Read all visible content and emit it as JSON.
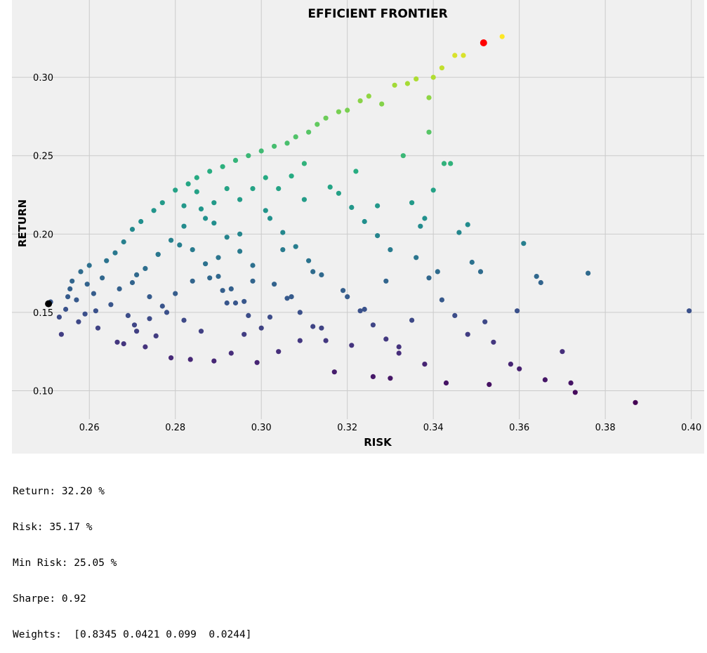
{
  "chart_data": {
    "type": "scatter",
    "title": "EFFICIENT FRONTIER",
    "xlabel": "RISK",
    "ylabel": "RETURN",
    "xlim": [
      0.242,
      0.403
    ],
    "ylim": [
      0.085,
      0.335
    ],
    "xticks": [
      {
        "value": 0.26,
        "label": "0.26"
      },
      {
        "value": 0.28,
        "label": "0.28"
      },
      {
        "value": 0.3,
        "label": "0.30"
      },
      {
        "value": 0.32,
        "label": "0.32"
      },
      {
        "value": 0.34,
        "label": "0.34"
      },
      {
        "value": 0.36,
        "label": "0.36"
      },
      {
        "value": 0.38,
        "label": "0.38"
      },
      {
        "value": 0.4,
        "label": "0.40"
      }
    ],
    "yticks": [
      {
        "value": 0.1,
        "label": "0.10"
      },
      {
        "value": 0.15,
        "label": "0.15"
      },
      {
        "value": 0.2,
        "label": "0.20"
      },
      {
        "value": 0.25,
        "label": "0.25"
      },
      {
        "value": 0.3,
        "label": "0.30"
      }
    ],
    "grid": true,
    "background": "#f0f0f0",
    "grid_color": "#cbcbcb",
    "colormap": "viridis",
    "color_by": "return",
    "series": [
      {
        "marker_color": "viridis",
        "points": [
          [
            0.251,
            0.1567
          ],
          [
            0.253,
            0.147
          ],
          [
            0.2535,
            0.136
          ],
          [
            0.2545,
            0.152
          ],
          [
            0.255,
            0.16
          ],
          [
            0.2555,
            0.165
          ],
          [
            0.256,
            0.17
          ],
          [
            0.257,
            0.158
          ],
          [
            0.2575,
            0.144
          ],
          [
            0.258,
            0.176
          ],
          [
            0.259,
            0.149
          ],
          [
            0.2595,
            0.168
          ],
          [
            0.26,
            0.18
          ],
          [
            0.261,
            0.162
          ],
          [
            0.2615,
            0.151
          ],
          [
            0.262,
            0.14
          ],
          [
            0.263,
            0.172
          ],
          [
            0.264,
            0.183
          ],
          [
            0.265,
            0.155
          ],
          [
            0.266,
            0.188
          ],
          [
            0.2665,
            0.131
          ],
          [
            0.267,
            0.165
          ],
          [
            0.268,
            0.195
          ],
          [
            0.269,
            0.148
          ],
          [
            0.27,
            0.203
          ],
          [
            0.2705,
            0.142
          ],
          [
            0.271,
            0.174
          ],
          [
            0.272,
            0.208
          ],
          [
            0.273,
            0.128
          ],
          [
            0.274,
            0.16
          ],
          [
            0.275,
            0.215
          ],
          [
            0.2755,
            0.135
          ],
          [
            0.276,
            0.187
          ],
          [
            0.277,
            0.22
          ],
          [
            0.278,
            0.15
          ],
          [
            0.279,
            0.121
          ],
          [
            0.28,
            0.228
          ],
          [
            0.281,
            0.193
          ],
          [
            0.282,
            0.145
          ],
          [
            0.283,
            0.232
          ],
          [
            0.2835,
            0.12
          ],
          [
            0.284,
            0.17
          ],
          [
            0.285,
            0.236
          ],
          [
            0.286,
            0.138
          ],
          [
            0.287,
            0.21
          ],
          [
            0.288,
            0.24
          ],
          [
            0.289,
            0.119
          ],
          [
            0.29,
            0.185
          ],
          [
            0.291,
            0.243
          ],
          [
            0.292,
            0.156
          ],
          [
            0.293,
            0.124
          ],
          [
            0.294,
            0.247
          ],
          [
            0.295,
            0.2
          ],
          [
            0.296,
            0.136
          ],
          [
            0.297,
            0.25
          ],
          [
            0.298,
            0.17
          ],
          [
            0.299,
            0.118
          ],
          [
            0.3,
            0.253
          ],
          [
            0.301,
            0.215
          ],
          [
            0.302,
            0.147
          ],
          [
            0.303,
            0.256
          ],
          [
            0.304,
            0.125
          ],
          [
            0.305,
            0.19
          ],
          [
            0.306,
            0.258
          ],
          [
            0.307,
            0.16
          ],
          [
            0.308,
            0.262
          ],
          [
            0.309,
            0.132
          ],
          [
            0.31,
            0.222
          ],
          [
            0.311,
            0.265
          ],
          [
            0.312,
            0.176
          ],
          [
            0.313,
            0.27
          ],
          [
            0.314,
            0.14
          ],
          [
            0.315,
            0.274
          ],
          [
            0.316,
            0.23
          ],
          [
            0.317,
            0.112
          ],
          [
            0.318,
            0.278
          ],
          [
            0.319,
            0.164
          ],
          [
            0.32,
            0.279
          ],
          [
            0.321,
            0.129
          ],
          [
            0.322,
            0.24
          ],
          [
            0.323,
            0.285
          ],
          [
            0.324,
            0.152
          ],
          [
            0.325,
            0.288
          ],
          [
            0.326,
            0.109
          ],
          [
            0.327,
            0.218
          ],
          [
            0.328,
            0.283
          ],
          [
            0.329,
            0.17
          ],
          [
            0.33,
            0.108
          ],
          [
            0.331,
            0.295
          ],
          [
            0.332,
            0.128
          ],
          [
            0.333,
            0.25
          ],
          [
            0.334,
            0.296
          ],
          [
            0.335,
            0.145
          ],
          [
            0.336,
            0.299
          ],
          [
            0.337,
            0.205
          ],
          [
            0.338,
            0.117
          ],
          [
            0.339,
            0.287
          ],
          [
            0.34,
            0.3
          ],
          [
            0.341,
            0.176
          ],
          [
            0.342,
            0.306
          ],
          [
            0.3425,
            0.245
          ],
          [
            0.343,
            0.105
          ],
          [
            0.345,
            0.314
          ],
          [
            0.346,
            0.201
          ],
          [
            0.347,
            0.314
          ],
          [
            0.348,
            0.206
          ],
          [
            0.349,
            0.182
          ],
          [
            0.351,
            0.176
          ],
          [
            0.352,
            0.144
          ],
          [
            0.353,
            0.104
          ],
          [
            0.354,
            0.131
          ],
          [
            0.356,
            0.326
          ],
          [
            0.358,
            0.117
          ],
          [
            0.3595,
            0.151
          ],
          [
            0.36,
            0.114
          ],
          [
            0.361,
            0.194
          ],
          [
            0.364,
            0.173
          ],
          [
            0.365,
            0.169
          ],
          [
            0.366,
            0.107
          ],
          [
            0.37,
            0.125
          ],
          [
            0.372,
            0.105
          ],
          [
            0.373,
            0.099
          ],
          [
            0.376,
            0.175
          ],
          [
            0.387,
            0.0925
          ],
          [
            0.3995,
            0.151
          ],
          [
            0.286,
            0.216
          ],
          [
            0.289,
            0.207
          ],
          [
            0.292,
            0.198
          ],
          [
            0.295,
            0.189
          ],
          [
            0.298,
            0.18
          ],
          [
            0.288,
            0.172
          ],
          [
            0.291,
            0.164
          ],
          [
            0.294,
            0.156
          ],
          [
            0.297,
            0.148
          ],
          [
            0.3,
            0.14
          ],
          [
            0.284,
            0.19
          ],
          [
            0.287,
            0.181
          ],
          [
            0.29,
            0.173
          ],
          [
            0.293,
            0.165
          ],
          [
            0.296,
            0.157
          ],
          [
            0.302,
            0.21
          ],
          [
            0.305,
            0.201
          ],
          [
            0.308,
            0.192
          ],
          [
            0.311,
            0.183
          ],
          [
            0.314,
            0.174
          ],
          [
            0.303,
            0.168
          ],
          [
            0.306,
            0.159
          ],
          [
            0.309,
            0.15
          ],
          [
            0.312,
            0.141
          ],
          [
            0.315,
            0.132
          ],
          [
            0.282,
            0.205
          ],
          [
            0.279,
            0.196
          ],
          [
            0.276,
            0.187
          ],
          [
            0.273,
            0.178
          ],
          [
            0.27,
            0.169
          ],
          [
            0.28,
            0.162
          ],
          [
            0.277,
            0.154
          ],
          [
            0.274,
            0.146
          ],
          [
            0.271,
            0.138
          ],
          [
            0.268,
            0.13
          ],
          [
            0.318,
            0.226
          ],
          [
            0.321,
            0.217
          ],
          [
            0.324,
            0.208
          ],
          [
            0.327,
            0.199
          ],
          [
            0.33,
            0.19
          ],
          [
            0.32,
            0.16
          ],
          [
            0.323,
            0.151
          ],
          [
            0.326,
            0.142
          ],
          [
            0.329,
            0.133
          ],
          [
            0.332,
            0.124
          ],
          [
            0.335,
            0.22
          ],
          [
            0.338,
            0.21
          ],
          [
            0.34,
            0.228
          ],
          [
            0.344,
            0.245
          ],
          [
            0.339,
            0.265
          ],
          [
            0.336,
            0.185
          ],
          [
            0.339,
            0.172
          ],
          [
            0.342,
            0.158
          ],
          [
            0.345,
            0.148
          ],
          [
            0.348,
            0.136
          ],
          [
            0.31,
            0.245
          ],
          [
            0.307,
            0.237
          ],
          [
            0.304,
            0.229
          ],
          [
            0.301,
            0.236
          ],
          [
            0.298,
            0.229
          ],
          [
            0.295,
            0.222
          ],
          [
            0.292,
            0.229
          ],
          [
            0.289,
            0.22
          ],
          [
            0.285,
            0.227
          ],
          [
            0.282,
            0.218
          ]
        ]
      }
    ],
    "highlight_points": [
      {
        "name": "max-sharpe",
        "x": 0.3517,
        "y": 0.322,
        "color": "#ff0000"
      },
      {
        "name": "min-risk",
        "x": 0.2505,
        "y": 0.1555,
        "color": "#000000"
      }
    ]
  },
  "stats": {
    "return": "Return: 32.20 %",
    "risk": "Risk: 35.17 %",
    "min_risk": "Min Risk: 25.05 %",
    "sharpe": "Sharpe: 0.92",
    "weights": "Weights:  [0.8345 0.0421 0.099  0.0244]"
  }
}
